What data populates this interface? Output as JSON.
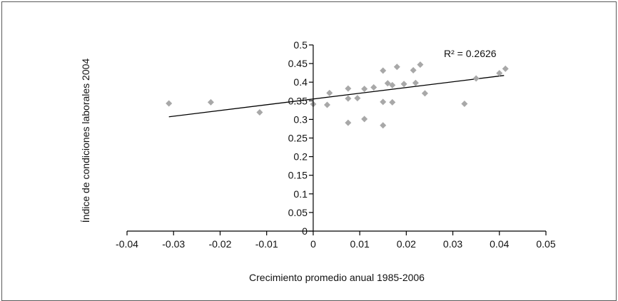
{
  "chart_data": {
    "type": "scatter",
    "title": "",
    "xlabel": "Crecimiento promedio anual 1985-2006",
    "ylabel": "Índice de condiciones laborales 2004",
    "xlim": [
      -0.04,
      0.05
    ],
    "ylim": [
      0,
      0.5
    ],
    "x_ticks": [
      "-0.04",
      "-0.03",
      "-0.02",
      "-0.01",
      "0",
      "0.01",
      "0.02",
      "0.03",
      "0.04",
      "0.05"
    ],
    "y_ticks": [
      "0",
      "0.05",
      "0.1",
      "0.15",
      "0.2",
      "0.25",
      "0.3",
      "0.35",
      "0.4",
      "0.45",
      "0.5"
    ],
    "grid": false,
    "legend": "none",
    "marker_color": "#a8a8a8",
    "line_color": "#000000",
    "annotation": "R² = 0.2626",
    "trendline": {
      "x": [
        -0.031,
        0.041
      ],
      "y": [
        0.307,
        0.418
      ]
    },
    "points": [
      {
        "x": -0.031,
        "y": 0.343
      },
      {
        "x": -0.022,
        "y": 0.346
      },
      {
        "x": -0.0115,
        "y": 0.319
      },
      {
        "x": 0.0,
        "y": 0.341
      },
      {
        "x": 0.003,
        "y": 0.339
      },
      {
        "x": 0.0035,
        "y": 0.371
      },
      {
        "x": 0.0075,
        "y": 0.291
      },
      {
        "x": 0.0075,
        "y": 0.356
      },
      {
        "x": 0.0075,
        "y": 0.383
      },
      {
        "x": 0.0095,
        "y": 0.357
      },
      {
        "x": 0.011,
        "y": 0.301
      },
      {
        "x": 0.011,
        "y": 0.382
      },
      {
        "x": 0.013,
        "y": 0.386
      },
      {
        "x": 0.015,
        "y": 0.284
      },
      {
        "x": 0.015,
        "y": 0.347
      },
      {
        "x": 0.015,
        "y": 0.431
      },
      {
        "x": 0.016,
        "y": 0.397
      },
      {
        "x": 0.017,
        "y": 0.346
      },
      {
        "x": 0.017,
        "y": 0.392
      },
      {
        "x": 0.018,
        "y": 0.441
      },
      {
        "x": 0.0195,
        "y": 0.395
      },
      {
        "x": 0.0215,
        "y": 0.432
      },
      {
        "x": 0.022,
        "y": 0.398
      },
      {
        "x": 0.023,
        "y": 0.447
      },
      {
        "x": 0.024,
        "y": 0.37
      },
      {
        "x": 0.0325,
        "y": 0.342
      },
      {
        "x": 0.035,
        "y": 0.41
      },
      {
        "x": 0.04,
        "y": 0.424
      },
      {
        "x": 0.0413,
        "y": 0.436
      }
    ]
  }
}
